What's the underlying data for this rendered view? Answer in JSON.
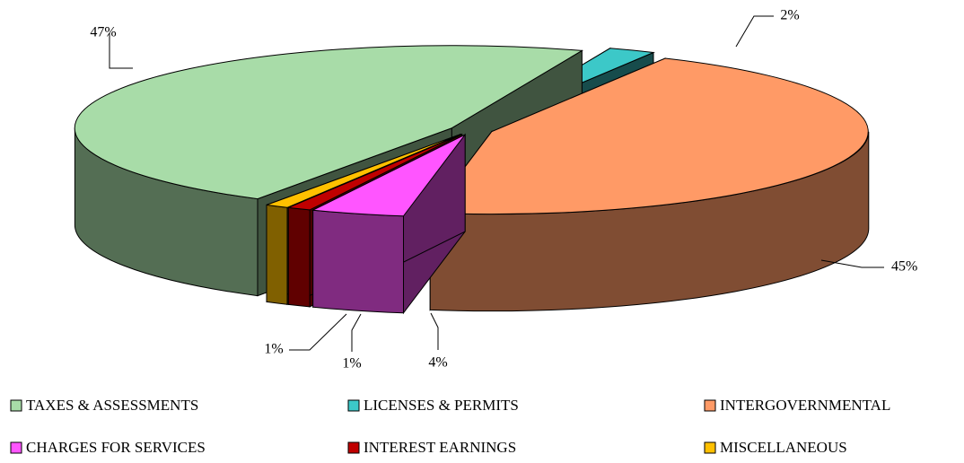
{
  "chart_data": {
    "type": "pie",
    "categories": [
      "TAXES & ASSESSMENTS",
      "LICENSES & PERMITS",
      "INTERGOVERNMENTAL",
      "CHARGES FOR SERVICES",
      "INTEREST EARNINGS",
      "MISCELLANEOUS"
    ],
    "values": [
      47,
      2,
      45,
      4,
      1,
      1
    ],
    "value_labels": [
      "47%",
      "2%",
      "45%",
      "4%",
      "1%",
      "1%"
    ],
    "colors": [
      "#a8dca8",
      "#3cc8c8",
      "#ff9a66",
      "#ff55ff",
      "#c00000",
      "#ffc000"
    ],
    "legend": "bottom"
  }
}
